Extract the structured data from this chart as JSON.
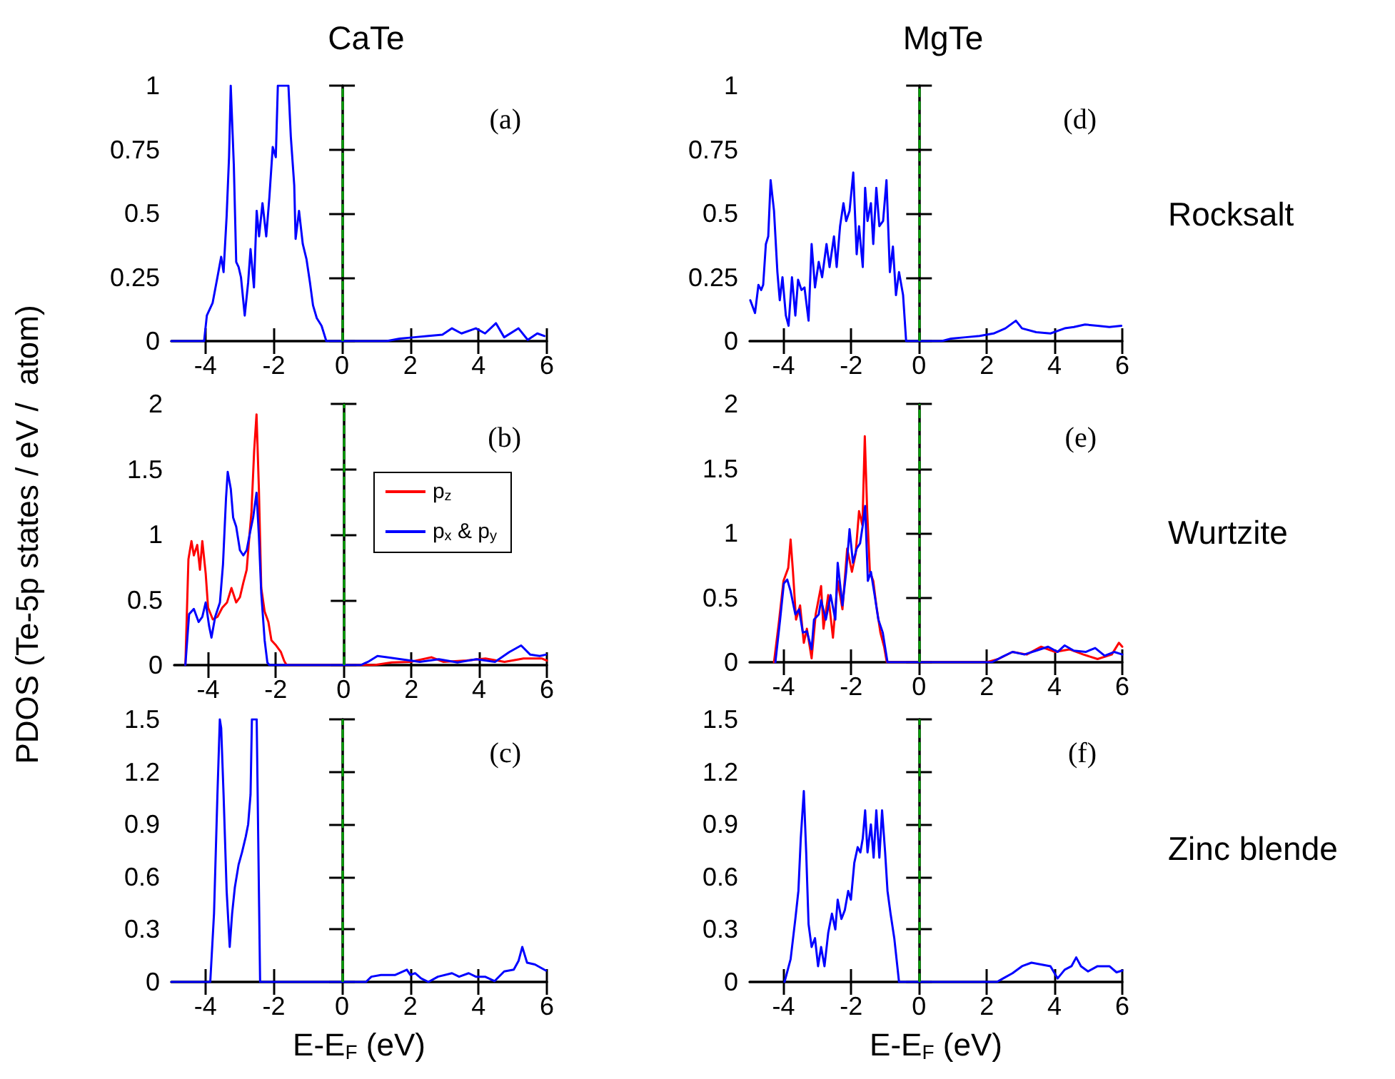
{
  "chart_data": [
    {
      "type": "line",
      "title": "CaTe",
      "xlim": [
        -5,
        6
      ],
      "xticks": [
        -4,
        -2,
        0,
        2,
        4,
        6
      ],
      "ylim": [
        0,
        1
      ],
      "yticks": [
        0,
        0.25,
        0.5,
        0.75,
        1
      ],
      "annotations": [
        "(a)"
      ],
      "ref_lines": [
        {
          "axis": "x",
          "value": 0,
          "color": "#00a000",
          "line_style": "dashed"
        }
      ],
      "series": [
        {
          "color": "#0000ff",
          "x": [
            -5,
            -4.04,
            -3.96,
            -3.79,
            -3.65,
            -3.54,
            -3.47,
            -3.38,
            -3.31,
            -3.26,
            -3.17,
            -3.1,
            -3.03,
            -2.96,
            -2.85,
            -2.75,
            -2.68,
            -2.58,
            -2.5,
            -2.43,
            -2.33,
            -2.22,
            -2.13,
            -2.03,
            -1.94,
            -1.88,
            -1.78,
            -1.57,
            -1.5,
            -1.4,
            -1.36,
            -1.26,
            -1.15,
            -1.04,
            -0.94,
            -0.85,
            -0.74,
            -0.6,
            -0.46,
            1.3,
            1.69,
            2.11,
            2.53,
            2.94,
            3.22,
            3.5,
            3.92,
            4.19,
            4.51,
            4.75,
            5.17,
            5.44,
            5.72,
            5.93
          ],
          "values": [
            0,
            0,
            0.1,
            0.15,
            0.25,
            0.33,
            0.27,
            0.49,
            0.72,
            1,
            0.69,
            0.31,
            0.29,
            0.25,
            0.1,
            0.23,
            0.36,
            0.21,
            0.51,
            0.41,
            0.54,
            0.41,
            0.56,
            0.76,
            0.72,
            1,
            1,
            1,
            0.8,
            0.61,
            0.4,
            0.51,
            0.38,
            0.32,
            0.23,
            0.14,
            0.09,
            0.06,
            0,
            0,
            0.01,
            0.015,
            0.02,
            0.025,
            0.05,
            0.03,
            0.05,
            0.03,
            0.07,
            0.015,
            0.05,
            0.005,
            0.03,
            0.02
          ]
        }
      ]
    },
    {
      "type": "line",
      "title": "MgTe",
      "xlim": [
        -5,
        6
      ],
      "xticks": [
        -4,
        -2,
        0,
        2,
        4,
        6
      ],
      "ylim": [
        0,
        1
      ],
      "yticks": [
        0,
        0.25,
        0.5,
        0.75,
        1
      ],
      "annotations": [
        "(d)",
        "Rocksalt"
      ],
      "ref_lines": [
        {
          "axis": "x",
          "value": 0,
          "color": "#00a000",
          "line_style": "dashed"
        }
      ],
      "series": [
        {
          "color": "#0000ff",
          "x": [
            -4.98,
            -4.84,
            -4.74,
            -4.66,
            -4.6,
            -4.52,
            -4.45,
            -4.38,
            -4.28,
            -4.18,
            -4.11,
            -4.03,
            -3.93,
            -3.85,
            -3.75,
            -3.65,
            -3.57,
            -3.47,
            -3.38,
            -3.26,
            -3.17,
            -3.07,
            -2.96,
            -2.86,
            -2.73,
            -2.64,
            -2.51,
            -2.43,
            -2.33,
            -2.23,
            -2.15,
            -2.05,
            -1.94,
            -1.84,
            -1.77,
            -1.66,
            -1.59,
            -1.52,
            -1.42,
            -1.35,
            -1.26,
            -1.17,
            -1.06,
            -0.96,
            -0.86,
            -0.77,
            -0.68,
            -0.59,
            -0.47,
            -0.38,
            0.67,
            0.95,
            1.37,
            1.79,
            2.2,
            2.55,
            2.86,
            3.04,
            3.46,
            3.88,
            4.3,
            4.57,
            4.9,
            5.27,
            5.62,
            5.97
          ],
          "values": [
            0.16,
            0.11,
            0.22,
            0.2,
            0.22,
            0.38,
            0.41,
            0.63,
            0.51,
            0.27,
            0.16,
            0.25,
            0.1,
            0.06,
            0.25,
            0.1,
            0.24,
            0.2,
            0.21,
            0.08,
            0.38,
            0.21,
            0.31,
            0.25,
            0.38,
            0.29,
            0.41,
            0.29,
            0.45,
            0.54,
            0.47,
            0.51,
            0.66,
            0.34,
            0.45,
            0.29,
            0.6,
            0.47,
            0.54,
            0.38,
            0.6,
            0.45,
            0.47,
            0.63,
            0.27,
            0.37,
            0.18,
            0.27,
            0.18,
            0,
            0,
            0.01,
            0.015,
            0.02,
            0.03,
            0.05,
            0.08,
            0.05,
            0.035,
            0.03,
            0.05,
            0.055,
            0.065,
            0.06,
            0.055,
            0.06
          ]
        }
      ]
    },
    {
      "type": "line",
      "ylabel": "PDOS (Te-5p states / eV /  atom)",
      "xlim": [
        -5,
        6
      ],
      "xticks": [
        -4,
        -2,
        0,
        2,
        4,
        6
      ],
      "ylim": [
        0,
        2
      ],
      "yticks": [
        0,
        0.5,
        1,
        1.5,
        2
      ],
      "annotations": [
        "(b)"
      ],
      "legend": "top right",
      "ref_lines": [
        {
          "axis": "x",
          "value": 0,
          "color": "#00a000",
          "line_style": "dashed"
        }
      ],
      "series": [
        {
          "name": "p$_{z}$",
          "color": "#ff0000",
          "x": [
            -4.67,
            -4.58,
            -4.49,
            -4.42,
            -4.32,
            -4.24,
            -4.17,
            -4.07,
            -4,
            -3.86,
            -3.72,
            -3.58,
            -3.44,
            -3.31,
            -3.17,
            -3.06,
            -2.96,
            -2.86,
            -2.78,
            -2.72,
            -2.64,
            -2.57,
            -2.5,
            -2.43,
            -2.33,
            -2.22,
            -2.13,
            -1.99,
            -1.85,
            -1.75,
            -1.68,
            0.9,
            1.42,
            1.97,
            2.6,
            2.94,
            3.64,
            4.19,
            4.75,
            5.31,
            5.86,
            6
          ],
          "values": [
            0,
            0.81,
            0.95,
            0.84,
            0.92,
            0.73,
            0.95,
            0.7,
            0.44,
            0.35,
            0.37,
            0.44,
            0.48,
            0.59,
            0.48,
            0.52,
            0.63,
            0.73,
            0.99,
            1.17,
            1.64,
            1.92,
            1.35,
            0.59,
            0.41,
            0.33,
            0.19,
            0.15,
            0.1,
            0.03,
            0,
            0,
            0.02,
            0.025,
            0.06,
            0.025,
            0.035,
            0.05,
            0.025,
            0.05,
            0.05,
            0.035
          ]
        },
        {
          "name": "p$_{x}$ & p$_{y}$",
          "color": "#0000ff",
          "x": [
            -4.67,
            -4.56,
            -4.42,
            -4.28,
            -4.17,
            -4.07,
            -3.97,
            -3.9,
            -3.79,
            -3.65,
            -3.56,
            -3.47,
            -3.42,
            -3.33,
            -3.26,
            -3.17,
            -3.06,
            -2.96,
            -2.86,
            -2.75,
            -2.67,
            -2.57,
            -2.5,
            -2.43,
            -2.33,
            -2.25,
            -2.19,
            0.5,
            0.72,
            1,
            1.28,
            1.69,
            2.25,
            2.81,
            3.36,
            3.92,
            4.47,
            4.89,
            5.24,
            5.51,
            5.79,
            5.97
          ],
          "values": [
            0,
            0.39,
            0.43,
            0.33,
            0.37,
            0.48,
            0.3,
            0.21,
            0.37,
            0.48,
            0.77,
            1.28,
            1.48,
            1.35,
            1.13,
            1.06,
            0.88,
            0.84,
            0.88,
            1.03,
            1.13,
            1.32,
            0.99,
            0.55,
            0.19,
            0.02,
            0,
            0,
            0.025,
            0.07,
            0.06,
            0.045,
            0.025,
            0.045,
            0.02,
            0.045,
            0.025,
            0.1,
            0.15,
            0.08,
            0.07,
            0.08
          ]
        }
      ]
    },
    {
      "type": "line",
      "xlim": [
        -5,
        6
      ],
      "xticks": [
        -4,
        -2,
        0,
        2,
        4,
        6
      ],
      "ylim": [
        0,
        2
      ],
      "yticks": [
        0,
        0.5,
        1,
        1.5,
        2
      ],
      "annotations": [
        "(e)",
        "Wurtzite"
      ],
      "ref_lines": [
        {
          "axis": "x",
          "value": 0,
          "color": "#00a000",
          "line_style": "dashed"
        }
      ],
      "series": [
        {
          "color": "#ff0000",
          "x": [
            -4.28,
            -4.14,
            -4,
            -3.86,
            -3.79,
            -3.72,
            -3.63,
            -3.51,
            -3.4,
            -3.31,
            -3.17,
            -3.05,
            -2.89,
            -2.82,
            -2.68,
            -2.54,
            -2.4,
            -2.26,
            -2.12,
            -1.98,
            -1.87,
            -1.77,
            -1.67,
            -1.6,
            -1.53,
            -1.45,
            -1.35,
            -1.26,
            -1.14,
            -1.03,
            -0.95,
            2,
            2.34,
            2.76,
            3.18,
            3.6,
            4.02,
            4.44,
            4.85,
            5.27,
            5.69,
            5.9,
            6
          ],
          "values": [
            0,
            0.3,
            0.63,
            0.73,
            0.95,
            0.7,
            0.33,
            0.44,
            0.15,
            0.26,
            0.03,
            0.37,
            0.59,
            0.26,
            0.52,
            0.19,
            0.63,
            0.41,
            0.88,
            0.7,
            0.84,
            1.17,
            1.06,
            1.75,
            1.17,
            0.7,
            0.63,
            0.44,
            0.23,
            0.12,
            0,
            0,
            0.025,
            0.08,
            0.06,
            0.12,
            0.08,
            0.1,
            0.06,
            0.025,
            0.06,
            0.15,
            0.12
          ]
        },
        {
          "color": "#0000ff",
          "x": [
            -4.24,
            -4.1,
            -3.99,
            -3.89,
            -3.79,
            -3.65,
            -3.54,
            -3.43,
            -3.31,
            -3.17,
            -3.1,
            -2.96,
            -2.89,
            -2.75,
            -2.61,
            -2.47,
            -2.4,
            -2.26,
            -2.15,
            -2.05,
            -1.95,
            -1.84,
            -1.74,
            -1.66,
            -1.59,
            -1.51,
            -1.42,
            -1.31,
            -1.2,
            -1.07,
            -0.93,
            2.15,
            2.48,
            2.76,
            3.11,
            3.46,
            3.81,
            4.09,
            4.3,
            4.57,
            4.92,
            5.2,
            5.48,
            5.76,
            6
          ],
          "values": [
            0,
            0.33,
            0.61,
            0.64,
            0.55,
            0.37,
            0.41,
            0.23,
            0.24,
            0.1,
            0.33,
            0.37,
            0.48,
            0.33,
            0.52,
            0.33,
            0.77,
            0.44,
            0.7,
            1.03,
            0.77,
            0.88,
            0.92,
            1.06,
            1.21,
            0.63,
            0.7,
            0.52,
            0.33,
            0.23,
            0,
            0,
            0.045,
            0.08,
            0.06,
            0.09,
            0.12,
            0.08,
            0.13,
            0.09,
            0.08,
            0.11,
            0.05,
            0.08,
            0.06
          ]
        }
      ]
    },
    {
      "type": "line",
      "xlabel": "E-E$_{F}$ (eV)",
      "xlim": [
        -5,
        6
      ],
      "xticks": [
        -4,
        -2,
        0,
        2,
        4,
        6
      ],
      "ylim": [
        0,
        1.5
      ],
      "yticks": [
        0,
        0.3,
        0.6,
        0.9,
        1.2,
        1.5
      ],
      "annotations": [
        "(c)"
      ],
      "ref_lines": [
        {
          "axis": "x",
          "value": 0,
          "color": "#00a000",
          "line_style": "dashed"
        }
      ],
      "series": [
        {
          "color": "#0000ff",
          "x": [
            -5,
            -3.86,
            -3.75,
            -3.65,
            -3.58,
            -3.54,
            -3.47,
            -3.38,
            -3.29,
            -3.22,
            -3.14,
            -3.03,
            -2.93,
            -2.82,
            -2.75,
            -2.68,
            -2.64,
            -2.5,
            -2.4,
            0.7,
            0.86,
            1.14,
            1.56,
            1.9,
            2,
            2.14,
            2.32,
            2.53,
            2.81,
            3.22,
            3.43,
            3.71,
            3.92,
            4.19,
            4.47,
            4.75,
            5.03,
            5.17,
            5.28,
            5.42,
            5.65,
            5.97
          ],
          "values": [
            0,
            0,
            0.39,
            1.07,
            1.5,
            1.45,
            1.07,
            0.52,
            0.2,
            0.39,
            0.54,
            0.67,
            0.74,
            0.83,
            0.9,
            1.07,
            1.5,
            1.5,
            0,
            0,
            0.03,
            0.04,
            0.04,
            0.07,
            0.04,
            0.05,
            0.02,
            0,
            0.03,
            0.05,
            0.03,
            0.05,
            0.03,
            0.03,
            0.005,
            0.06,
            0.07,
            0.12,
            0.2,
            0.11,
            0.1,
            0.065
          ]
        }
      ]
    },
    {
      "type": "line",
      "xlabel": "E-E$_{F}$ (eV)",
      "xlim": [
        -5,
        6
      ],
      "xticks": [
        -4,
        -2,
        0,
        2,
        4,
        6
      ],
      "ylim": [
        0,
        1.5
      ],
      "yticks": [
        0,
        0.3,
        0.6,
        0.9,
        1.2,
        1.5
      ],
      "annotations": [
        "(f)",
        "Zinc blende"
      ],
      "ref_lines": [
        {
          "axis": "x",
          "value": 0,
          "color": "#00a000",
          "line_style": "dashed"
        }
      ],
      "series": [
        {
          "color": "#0000ff",
          "x": [
            -3.97,
            -3.79,
            -3.65,
            -3.56,
            -3.49,
            -3.4,
            -3.33,
            -3.26,
            -3.17,
            -3.07,
            -2.98,
            -2.89,
            -2.79,
            -2.68,
            -2.57,
            -2.47,
            -2.4,
            -2.29,
            -2.19,
            -2.09,
            -2.01,
            -1.91,
            -1.81,
            -1.73,
            -1.66,
            -1.59,
            -1.52,
            -1.42,
            -1.34,
            -1.26,
            -1.17,
            -1.09,
            -1,
            -0.93,
            -0.84,
            -0.73,
            -0.59,
            2.3,
            2.48,
            2.76,
            3.04,
            3.32,
            3.6,
            3.88,
            4.09,
            4.3,
            4.5,
            4.64,
            4.78,
            4.99,
            5.27,
            5.62,
            5.83,
            6
          ],
          "values": [
            0,
            0.13,
            0.36,
            0.52,
            0.82,
            1.09,
            0.74,
            0.33,
            0.2,
            0.25,
            0.09,
            0.2,
            0.09,
            0.28,
            0.39,
            0.3,
            0.47,
            0.36,
            0.41,
            0.52,
            0.47,
            0.68,
            0.77,
            0.74,
            0.82,
            0.98,
            0.74,
            0.9,
            0.71,
            0.98,
            0.71,
            0.98,
            0.74,
            0.52,
            0.39,
            0.25,
            0,
            0,
            0.02,
            0.05,
            0.09,
            0.11,
            0.1,
            0.09,
            0.02,
            0.07,
            0.09,
            0.14,
            0.09,
            0.06,
            0.09,
            0.09,
            0.055,
            0.065
          ]
        }
      ]
    }
  ]
}
